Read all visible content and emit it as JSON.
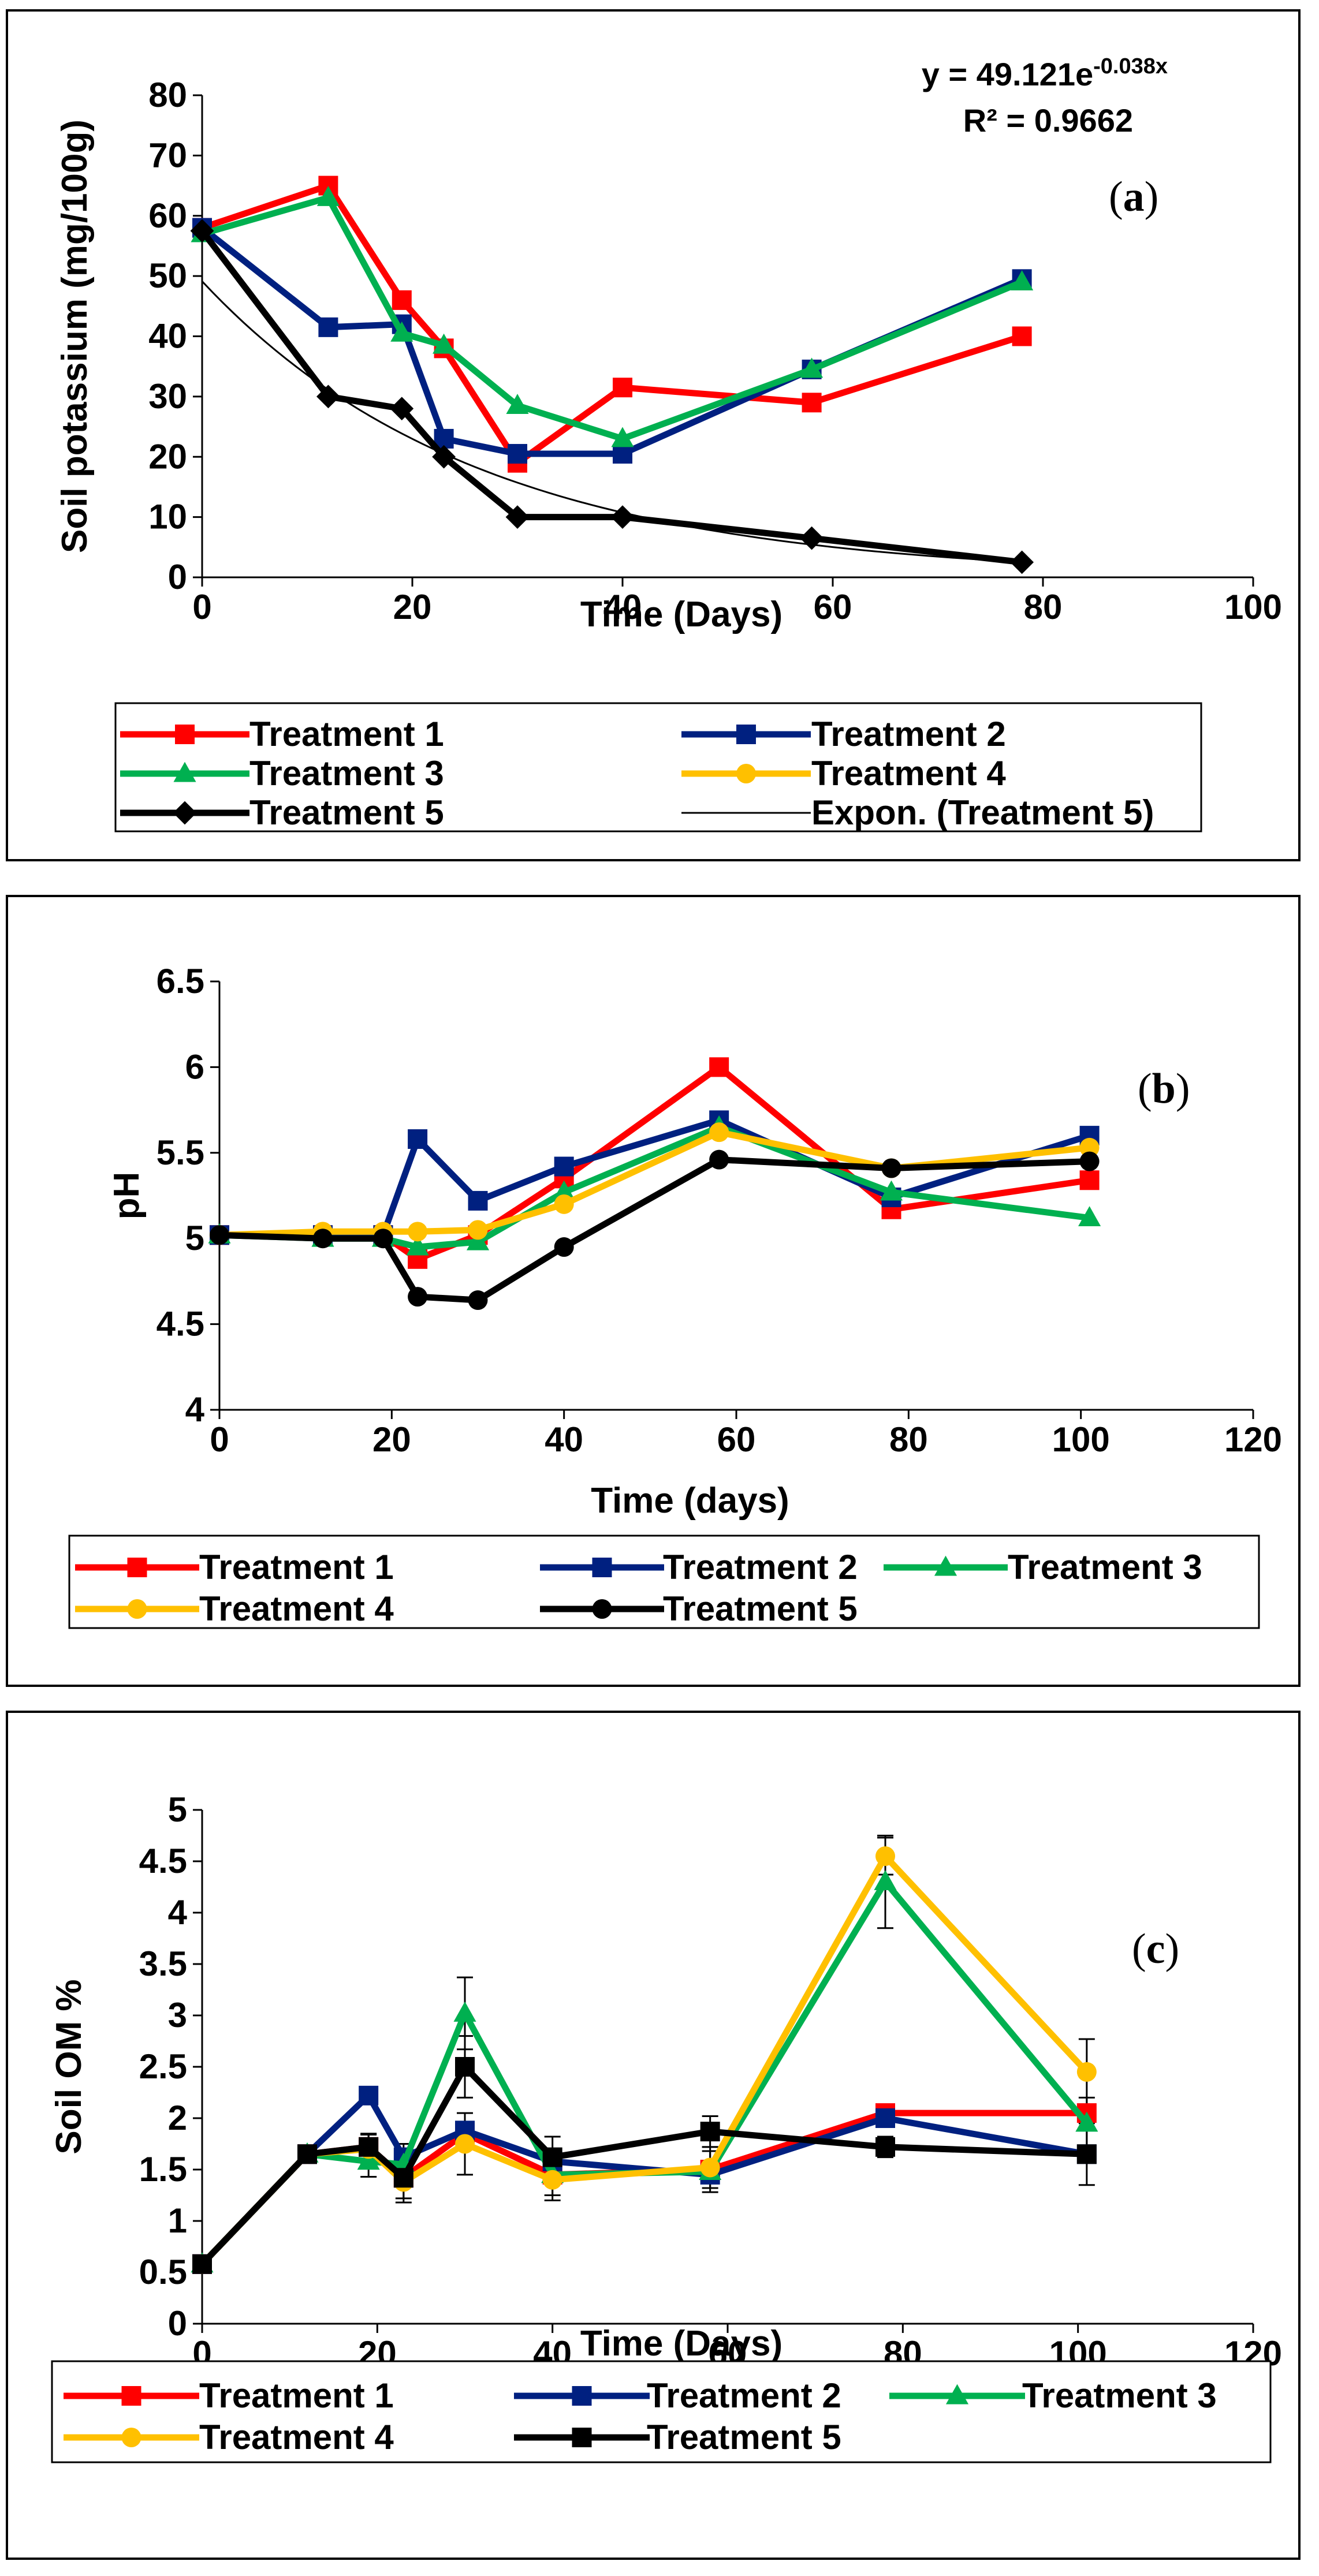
{
  "chart_data": [
    {
      "id": "a",
      "type": "line",
      "panel_label": "(a)",
      "panel_letter": "a",
      "ylabel": "Soil potassium (mg/100g)",
      "xlabel": "Time (Days)",
      "xlim": [
        0,
        100
      ],
      "ylim": [
        0,
        80
      ],
      "xticks": [
        0,
        20,
        40,
        60,
        80,
        100
      ],
      "yticks": [
        0,
        10,
        20,
        30,
        40,
        50,
        60,
        70,
        80
      ],
      "equation": {
        "text": "y = 49.121e",
        "exponent": "-0.038x",
        "r2": "R² = 0.9662"
      },
      "trendline": {
        "name": "Expon. (Treatment 5)",
        "a": 49.121,
        "b": -0.038,
        "x_range": [
          0,
          78
        ]
      },
      "series": [
        {
          "name": "Treatment 1",
          "color": "#ff0000",
          "marker": "square",
          "x": [
            0,
            12,
            19,
            23,
            30,
            40,
            58,
            78
          ],
          "y": [
            58,
            65,
            46,
            38,
            19,
            31.5,
            29,
            40
          ]
        },
        {
          "name": "Treatment 2",
          "color": "#002080",
          "marker": "square",
          "x": [
            0,
            12,
            19,
            23,
            30,
            40,
            58,
            78
          ],
          "y": [
            58,
            41.5,
            42,
            23,
            20.5,
            20.5,
            34.5,
            49.5
          ]
        },
        {
          "name": "Treatment 3",
          "color": "#00b050",
          "marker": "triangle",
          "x": [
            0,
            12,
            19,
            23,
            30,
            40,
            58,
            78
          ],
          "y": [
            57,
            63,
            40.5,
            38.5,
            28.5,
            23,
            34.5,
            49
          ]
        },
        {
          "name": "Treatment 4",
          "color": "#ffc000",
          "marker": "circle",
          "x": [],
          "y": []
        },
        {
          "name": "Treatment 5",
          "color": "#000000",
          "marker": "diamond",
          "x": [
            0,
            12,
            19,
            23,
            30,
            40,
            58,
            78
          ],
          "y": [
            57.5,
            30,
            28,
            20,
            10,
            10,
            6.5,
            2.5
          ]
        }
      ],
      "legend_order": [
        "Treatment 1",
        "Treatment 2",
        "Treatment 3",
        "Treatment 4",
        "Treatment 5",
        "Expon. (Treatment 5)"
      ]
    },
    {
      "id": "b",
      "type": "line",
      "panel_label": "(b)",
      "panel_letter": "b",
      "ylabel": "pH",
      "xlabel": "Time (days)",
      "xlim": [
        0,
        120
      ],
      "ylim": [
        4,
        6.5
      ],
      "xticks": [
        0,
        20,
        40,
        60,
        80,
        100,
        120
      ],
      "yticks": [
        4,
        4.5,
        5,
        5.5,
        6,
        6.5
      ],
      "series": [
        {
          "name": "Treatment 1",
          "color": "#ff0000",
          "marker": "square",
          "x": [
            0,
            12,
            19,
            23,
            30,
            40,
            58,
            78,
            101
          ],
          "y": [
            5.02,
            5.02,
            5.02,
            4.88,
            5.02,
            5.35,
            6.0,
            5.17,
            5.34
          ]
        },
        {
          "name": "Treatment 2",
          "color": "#002080",
          "marker": "square",
          "x": [
            0,
            12,
            19,
            23,
            30,
            40,
            58,
            78,
            101
          ],
          "y": [
            5.02,
            5.02,
            5.02,
            5.58,
            5.22,
            5.42,
            5.69,
            5.24,
            5.6
          ]
        },
        {
          "name": "Treatment 3",
          "color": "#00b050",
          "marker": "triangle",
          "x": [
            0,
            12,
            19,
            23,
            30,
            40,
            58,
            78,
            101
          ],
          "y": [
            5.02,
            5.0,
            5.0,
            4.95,
            4.98,
            5.27,
            5.65,
            5.27,
            5.12
          ]
        },
        {
          "name": "Treatment 4",
          "color": "#ffc000",
          "marker": "circle",
          "x": [
            0,
            12,
            19,
            23,
            30,
            40,
            58,
            78,
            101
          ],
          "y": [
            5.02,
            5.04,
            5.04,
            5.04,
            5.05,
            5.2,
            5.62,
            5.41,
            5.53
          ]
        },
        {
          "name": "Treatment 5",
          "color": "#000000",
          "marker": "circle",
          "x": [
            0,
            12,
            19,
            23,
            30,
            40,
            58,
            78,
            101
          ],
          "y": [
            5.02,
            5.0,
            5.0,
            4.66,
            4.64,
            4.95,
            5.46,
            5.41,
            5.45
          ]
        }
      ],
      "legend_order": [
        "Treatment 1",
        "Treatment 2",
        "Treatment 3",
        "Treatment 4",
        "Treatment 5"
      ]
    },
    {
      "id": "c",
      "type": "line",
      "panel_label": "(c)",
      "panel_letter": "c",
      "ylabel": "Soil OM %",
      "xlabel": "Time (Days)",
      "xlim": [
        0,
        120
      ],
      "ylim": [
        0,
        5
      ],
      "xticks": [
        0,
        20,
        40,
        60,
        80,
        100,
        120
      ],
      "yticks": [
        0,
        0.5,
        1,
        1.5,
        2,
        2.5,
        3,
        3.5,
        4,
        4.5,
        5
      ],
      "series": [
        {
          "name": "Treatment 1",
          "color": "#ff0000",
          "marker": "square",
          "x": [
            0,
            12,
            19,
            23,
            30,
            40,
            58,
            78,
            101
          ],
          "y": [
            0.58,
            1.65,
            1.72,
            1.42,
            1.85,
            1.45,
            1.5,
            2.05,
            2.05
          ]
        },
        {
          "name": "Treatment 2",
          "color": "#002080",
          "marker": "square",
          "x": [
            0,
            12,
            19,
            23,
            30,
            40,
            58,
            78,
            101
          ],
          "y": [
            0.58,
            1.65,
            2.22,
            1.62,
            1.88,
            1.58,
            1.45,
            2.0,
            1.65
          ]
        },
        {
          "name": "Treatment 3",
          "color": "#00b050",
          "marker": "triangle",
          "x": [
            0,
            12,
            19,
            23,
            30,
            40,
            58,
            78,
            101
          ],
          "y": [
            0.58,
            1.65,
            1.58,
            1.55,
            3.02,
            1.45,
            1.48,
            4.3,
            1.95
          ]
        },
        {
          "name": "Treatment 4",
          "color": "#ffc000",
          "marker": "circle",
          "x": [
            0,
            12,
            19,
            23,
            30,
            40,
            58,
            78,
            101
          ],
          "y": [
            0.58,
            1.65,
            1.7,
            1.38,
            1.75,
            1.4,
            1.52,
            4.55,
            2.45
          ]
        },
        {
          "name": "Treatment 5",
          "color": "#000000",
          "marker": "square",
          "x": [
            0,
            12,
            19,
            23,
            30,
            40,
            58,
            78,
            101
          ],
          "y": [
            0.58,
            1.65,
            1.72,
            1.42,
            2.5,
            1.62,
            1.87,
            1.72,
            1.65
          ]
        }
      ],
      "errors": {
        "Treatment 3": [
          0,
          0,
          0.15,
          0.2,
          0.35,
          0.2,
          0.2,
          0.45,
          0.25
        ],
        "Treatment 4": [
          0,
          0,
          0.15,
          0.2,
          0.3,
          0.2,
          0.2,
          0.18,
          0.32
        ],
        "Treatment 5": [
          0,
          0,
          0.12,
          0.2,
          0.3,
          0.2,
          0.15,
          0.1,
          0.3
        ]
      },
      "legend_order": [
        "Treatment 1",
        "Treatment 2",
        "Treatment 3",
        "Treatment 4",
        "Treatment 5"
      ]
    }
  ]
}
